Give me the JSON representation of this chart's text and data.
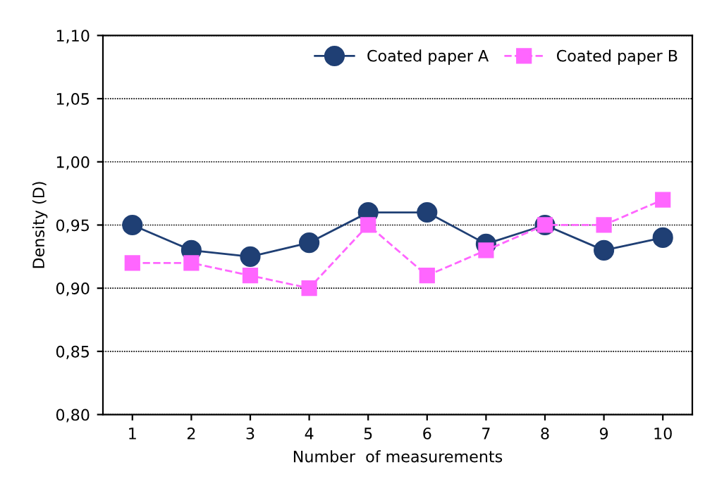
{
  "chart_data": {
    "type": "line",
    "xlabel": "Number  of measurements",
    "ylabel": "Density (D)",
    "categories": [
      "1",
      "2",
      "3",
      "4",
      "5",
      "6",
      "7",
      "8",
      "9",
      "10"
    ],
    "series": [
      {
        "name": "Coated paper A",
        "color": "#1f3f74",
        "values": [
          0.95,
          0.93,
          0.925,
          0.936,
          0.96,
          0.96,
          0.935,
          0.95,
          0.93,
          0.94
        ],
        "marker": "circle",
        "line_style": "solid"
      },
      {
        "name": "Coated paper B",
        "color": "#ff66ff",
        "values": [
          0.92,
          0.92,
          0.91,
          0.9,
          0.95,
          0.91,
          0.93,
          0.95,
          0.95,
          0.97
        ],
        "marker": "square",
        "line_style": "dashed"
      }
    ],
    "ylim": [
      0.8,
      1.1
    ],
    "yticks": [
      {
        "value": 0.8,
        "label": "0,80"
      },
      {
        "value": 0.85,
        "label": "0,85"
      },
      {
        "value": 0.9,
        "label": "0,90"
      },
      {
        "value": 0.95,
        "label": "0,95"
      },
      {
        "value": 1.0,
        "label": "1,00"
      },
      {
        "value": 1.05,
        "label": "1,05"
      },
      {
        "value": 1.1,
        "label": "1,10"
      }
    ],
    "grid": "y",
    "legend": "top right"
  }
}
